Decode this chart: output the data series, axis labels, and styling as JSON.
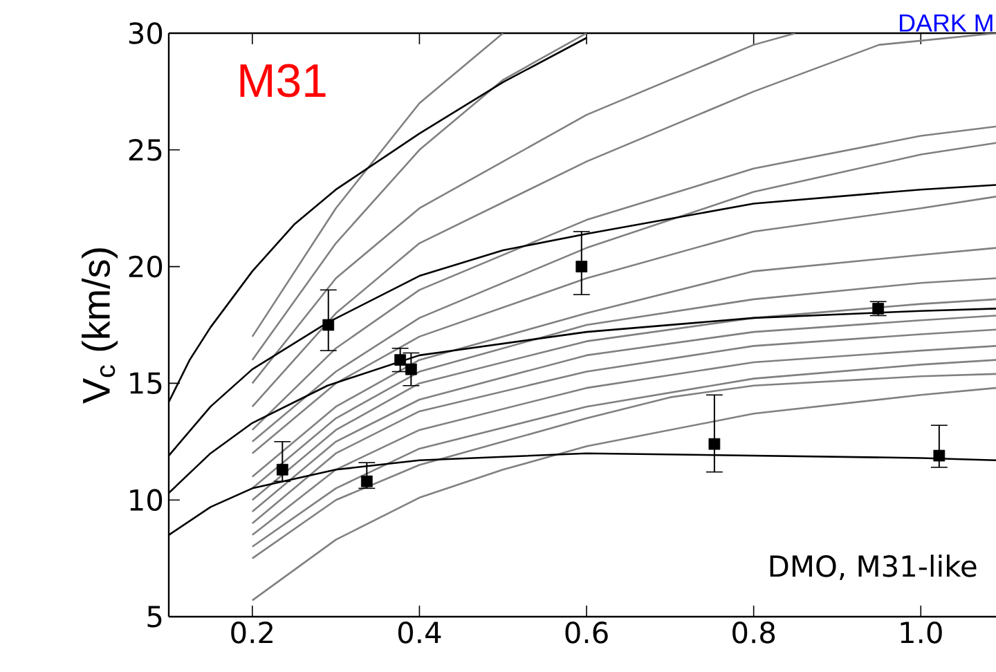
{
  "chart_data": {
    "type": "line",
    "ylabel": "V$_{c}$ (km/s)",
    "xlim": [
      0.1,
      1.09
    ],
    "ylim": [
      5,
      30
    ],
    "xticks": [
      0.2,
      0.4,
      0.6,
      0.8,
      {
        "value": 1.0,
        "label": "1.0"
      }
    ],
    "yticks": [
      5,
      10,
      15,
      20,
      25,
      30
    ],
    "annotations": [
      "M31",
      "DMO, M31-like",
      "DARK M"
    ],
    "series": [
      {
        "color": "#808080",
        "x": [
          0.2,
          0.3,
          0.4,
          0.5
        ],
        "values": [
          17,
          22.5,
          27,
          30
        ]
      },
      {
        "color": "#808080",
        "x": [
          0.2,
          0.3,
          0.4,
          0.5,
          0.6
        ],
        "values": [
          16,
          21,
          25,
          28,
          30
        ]
      },
      {
        "color": "#808080",
        "x": [
          0.2,
          0.3,
          0.4,
          0.6,
          0.8,
          0.85
        ],
        "values": [
          15,
          19.5,
          22.5,
          26.5,
          29.5,
          30
        ]
      },
      {
        "color": "#808080",
        "x": [
          0.2,
          0.3,
          0.4,
          0.6,
          0.8,
          0.95,
          1.09
        ],
        "values": [
          14,
          18,
          21,
          24.5,
          27.5,
          29.5,
          30
        ]
      },
      {
        "color": "#808080",
        "x": [
          0.2,
          0.3,
          0.4,
          0.6,
          0.8,
          1.0,
          1.09
        ],
        "values": [
          13,
          16.5,
          19,
          22,
          24.2,
          25.6,
          26
        ]
      },
      {
        "color": "#808080",
        "x": [
          0.2,
          0.3,
          0.4,
          0.6,
          0.8,
          1.0,
          1.09
        ],
        "values": [
          12.5,
          15.5,
          17.8,
          20.8,
          23.2,
          24.8,
          25.3
        ]
      },
      {
        "color": "#808080",
        "x": [
          0.2,
          0.3,
          0.4,
          0.6,
          0.8,
          1.0,
          1.09
        ],
        "values": [
          12,
          15,
          17,
          19.5,
          21.5,
          22.5,
          23
        ]
      },
      {
        "color": "#808080",
        "x": [
          0.2,
          0.3,
          0.4,
          0.6,
          0.8,
          1.0,
          1.09
        ],
        "values": [
          11,
          14,
          16,
          18,
          19.8,
          20.5,
          20.8
        ]
      },
      {
        "color": "#808080",
        "x": [
          0.2,
          0.3,
          0.4,
          0.6,
          0.8,
          1.0,
          1.09
        ],
        "values": [
          10.5,
          13.5,
          15.5,
          17.5,
          18.6,
          19.3,
          19.5
        ]
      },
      {
        "color": "#808080",
        "x": [
          0.2,
          0.3,
          0.4,
          0.6,
          0.8,
          1.0,
          1.09
        ],
        "values": [
          10,
          13,
          15,
          16.8,
          17.8,
          18.4,
          18.6
        ]
      },
      {
        "color": "#808080",
        "x": [
          0.2,
          0.3,
          0.4,
          0.6,
          0.8,
          1.0,
          1.09
        ],
        "values": [
          9.5,
          12.5,
          14.3,
          16.2,
          17.2,
          17.7,
          17.9
        ]
      },
      {
        "color": "#808080",
        "x": [
          0.2,
          0.3,
          0.4,
          0.6,
          0.8,
          1.0,
          1.09
        ],
        "values": [
          9,
          12,
          13.8,
          15.5,
          16.6,
          17.1,
          17.3
        ]
      },
      {
        "color": "#808080",
        "x": [
          0.2,
          0.3,
          0.4,
          0.6,
          0.8,
          1.0,
          1.09
        ],
        "values": [
          8.5,
          11.3,
          13,
          14.8,
          15.9,
          16.4,
          16.6
        ]
      },
      {
        "color": "#808080",
        "x": [
          0.2,
          0.3,
          0.4,
          0.6,
          0.8,
          1.0,
          1.09
        ],
        "values": [
          8,
          10.5,
          12.2,
          14,
          15.2,
          15.8,
          16
        ]
      },
      {
        "color": "#808080",
        "x": [
          0.2,
          0.3,
          0.4,
          0.5,
          0.6,
          0.7,
          0.8,
          1.0,
          1.09
        ],
        "values": [
          7.5,
          10,
          11.5,
          12.5,
          13.5,
          14.4,
          14.9,
          15.3,
          15.4
        ]
      },
      {
        "color": "#808080",
        "x": [
          0.2,
          0.3,
          0.4,
          0.5,
          0.6,
          0.8,
          1.0,
          1.09
        ],
        "values": [
          5.7,
          8.3,
          10.1,
          11.3,
          12.3,
          13.7,
          14.5,
          14.8
        ]
      },
      {
        "color": "#000000",
        "x": [
          0.1,
          0.125,
          0.15,
          0.2,
          0.25,
          0.3,
          0.4,
          0.5,
          0.6
        ],
        "values": [
          14.2,
          16,
          17.4,
          19.8,
          21.8,
          23.3,
          25.7,
          27.9,
          29.8
        ]
      },
      {
        "color": "#000000",
        "x": [
          0.1,
          0.15,
          0.2,
          0.29,
          0.4,
          0.5,
          0.6,
          0.8,
          1.0,
          1.09
        ],
        "values": [
          11.9,
          14,
          15.6,
          17.6,
          19.6,
          20.7,
          21.4,
          22.7,
          23.3,
          23.5
        ]
      },
      {
        "color": "#000000",
        "x": [
          0.1,
          0.15,
          0.2,
          0.29,
          0.4,
          0.6,
          0.8,
          1.0,
          1.09
        ],
        "values": [
          10.3,
          12,
          13.3,
          14.9,
          16.2,
          17.2,
          17.8,
          18.1,
          18.2
        ]
      },
      {
        "color": "#000000",
        "x": [
          0.1,
          0.15,
          0.2,
          0.3,
          0.4,
          0.6,
          0.8,
          1.0,
          1.09
        ],
        "values": [
          8.5,
          9.7,
          10.5,
          11.3,
          11.7,
          12,
          11.9,
          11.8,
          11.7
        ]
      },
      {
        "type": "scatter",
        "marker": "square",
        "color": "#000000",
        "x": [
          0.236,
          0.291,
          0.337,
          0.377,
          0.39,
          0.594,
          0.753,
          0.949,
          1.022
        ],
        "values": [
          11.3,
          17.5,
          10.8,
          16.0,
          15.6,
          20.0,
          12.4,
          18.2,
          11.9
        ],
        "errors": [
          [
            10.8,
            12.5
          ],
          [
            16.4,
            19.0
          ],
          [
            10.5,
            11.6
          ],
          [
            15.5,
            16.5
          ],
          [
            14.9,
            16.3
          ],
          [
            18.8,
            21.5
          ],
          [
            11.2,
            14.5
          ],
          [
            17.9,
            18.5
          ],
          [
            11.4,
            13.2
          ]
        ]
      }
    ]
  }
}
